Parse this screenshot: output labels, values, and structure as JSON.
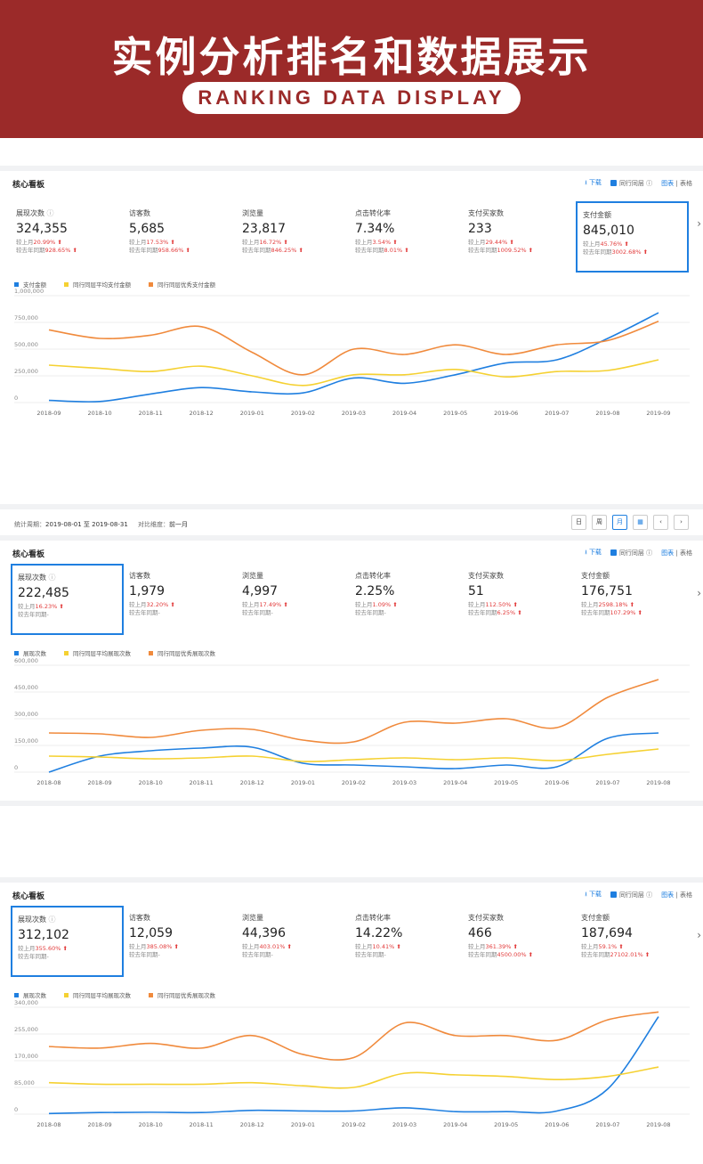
{
  "banner": {
    "title": "实例分析排名和数据展示",
    "subtitle": "RANKING DATA DISPLAY",
    "color": "#9b2a29"
  },
  "colors": {
    "blue": "#1f7fe0",
    "yellow": "#f5d132",
    "orange": "#f08a3c",
    "red": "#e23b3b"
  },
  "panels": [
    {
      "title": "核心看板",
      "download": "下载",
      "peer_label": "同行同层",
      "view_chart": "图表",
      "view_sep": "|",
      "view_table": "表格",
      "metrics": [
        {
          "name": "展现次数",
          "value": "324,355",
          "line1_label": "较上月",
          "line1_value": "20.99%",
          "line2_label": "较去年同期",
          "line2_value": "928.65%"
        },
        {
          "name": "访客数",
          "value": "5,685",
          "line1_label": "较上月",
          "line1_value": "17.53%",
          "line2_label": "较去年同期",
          "line2_value": "958.66%"
        },
        {
          "name": "浏览量",
          "value": "23,817",
          "line1_label": "较上月",
          "line1_value": "16.72%",
          "line2_label": "较去年同期",
          "line2_value": "846.25%"
        },
        {
          "name": "点击转化率",
          "value": "7.34%",
          "line1_label": "较上月",
          "line1_value": "3.54%",
          "line2_label": "较去年同期",
          "line2_value": "8.01%"
        },
        {
          "name": "支付买家数",
          "value": "233",
          "line1_label": "较上月",
          "line1_value": "29.44%",
          "line2_label": "较去年同期",
          "line2_value": "1009.52%"
        },
        {
          "name": "支付金额",
          "value": "845,010",
          "line1_label": "较上月",
          "line1_value": "45.76%",
          "line2_label": "较去年同期",
          "line2_value": "3002.68%"
        }
      ],
      "selected": 5,
      "legend": [
        "支付金额",
        "同行同层平均支付金额",
        "同行同层优秀支付金额"
      ]
    },
    {
      "title": "核心看板",
      "download": "下载",
      "peer_label": "同行同层",
      "view_chart": "图表",
      "view_sep": "|",
      "view_table": "表格",
      "metrics": [
        {
          "name": "展现次数",
          "value": "222,485",
          "line1_label": "较上月",
          "line1_value": "16.23%",
          "line2_label": "较去年同期",
          "line2_value": "-"
        },
        {
          "name": "访客数",
          "value": "1,979",
          "line1_label": "较上月",
          "line1_value": "32.20%",
          "line2_label": "较去年同期",
          "line2_value": "-"
        },
        {
          "name": "浏览量",
          "value": "4,997",
          "line1_label": "较上月",
          "line1_value": "17.49%",
          "line2_label": "较去年同期",
          "line2_value": "-"
        },
        {
          "name": "点击转化率",
          "value": "2.25%",
          "line1_label": "较上月",
          "line1_value": "1.09%",
          "line2_label": "较去年同期",
          "line2_value": "-"
        },
        {
          "name": "支付买家数",
          "value": "51",
          "line1_label": "较上月",
          "line1_value": "112.50%",
          "line2_label": "较去年同期",
          "line2_value": "6.25%"
        },
        {
          "name": "支付金额",
          "value": "176,751",
          "line1_label": "较上月",
          "line1_value": "2598.18%",
          "line2_label": "较去年同期",
          "line2_value": "107.29%"
        }
      ],
      "selected": 0,
      "legend": [
        "展现次数",
        "同行同层平均展现次数",
        "同行同层优秀展现次数"
      ]
    },
    {
      "title": "核心看板",
      "download": "下载",
      "peer_label": "同行同层",
      "view_chart": "图表",
      "view_sep": "|",
      "view_table": "表格",
      "metrics": [
        {
          "name": "展现次数",
          "value": "312,102",
          "line1_label": "较上月",
          "line1_value": "355.60%",
          "line2_label": "较去年同期",
          "line2_value": "-"
        },
        {
          "name": "访客数",
          "value": "12,059",
          "line1_label": "较上月",
          "line1_value": "385.08%",
          "line2_label": "较去年同期",
          "line2_value": "-"
        },
        {
          "name": "浏览量",
          "value": "44,396",
          "line1_label": "较上月",
          "line1_value": "403.01%",
          "line2_label": "较去年同期",
          "line2_value": "-"
        },
        {
          "name": "点击转化率",
          "value": "14.22%",
          "line1_label": "较上月",
          "line1_value": "10.41%",
          "line2_label": "较去年同期",
          "line2_value": "-"
        },
        {
          "name": "支付买家数",
          "value": "466",
          "line1_label": "较上月",
          "line1_value": "361.39%",
          "line2_label": "较去年同期",
          "line2_value": "4500.00%"
        },
        {
          "name": "支付金额",
          "value": "187,694",
          "line1_label": "较上月",
          "line1_value": "59.1%",
          "line2_label": "较去年同期",
          "line2_value": "27102.01%"
        }
      ],
      "selected": 0,
      "legend": [
        "展现次数",
        "同行同层平均展现次数",
        "同行同层优秀展现次数"
      ]
    }
  ],
  "filter": {
    "period_label": "统计周期：",
    "period_value": "2019-08-01 至 2019-08-31",
    "compare_label": "对比维度：",
    "compare_value": "前一月",
    "buttons": [
      "日",
      "周",
      "月"
    ],
    "active": "月"
  },
  "chart_data": [
    {
      "type": "line",
      "categories": [
        "2018-09",
        "2018-10",
        "2018-11",
        "2018-12",
        "2019-01",
        "2019-02",
        "2019-03",
        "2019-04",
        "2019-05",
        "2019-06",
        "2019-07",
        "2019-08",
        "2019-09"
      ],
      "ylim": [
        0,
        1000000
      ],
      "yticks": [
        "1,000,000",
        "750,000",
        "500,000",
        "250,000",
        "0"
      ],
      "series": [
        {
          "name": "支付金额",
          "color": "#1f7fe0",
          "values": [
            20000,
            10000,
            80000,
            140000,
            100000,
            90000,
            230000,
            180000,
            260000,
            370000,
            400000,
            600000,
            840000
          ]
        },
        {
          "name": "同行同层平均支付金额",
          "color": "#f5d132",
          "values": [
            350000,
            320000,
            290000,
            340000,
            250000,
            160000,
            260000,
            260000,
            310000,
            240000,
            290000,
            300000,
            400000
          ]
        },
        {
          "name": "同行同层优秀支付金额",
          "color": "#f08a3c",
          "values": [
            680000,
            600000,
            630000,
            710000,
            470000,
            260000,
            500000,
            450000,
            540000,
            450000,
            540000,
            580000,
            760000
          ]
        }
      ]
    },
    {
      "type": "line",
      "categories": [
        "2018-08",
        "2018-09",
        "2018-10",
        "2018-11",
        "2018-12",
        "2019-01",
        "2019-02",
        "2019-03",
        "2019-04",
        "2019-05",
        "2019-06",
        "2019-07",
        "2019-08"
      ],
      "ylim": [
        0,
        600000
      ],
      "yticks": [
        "600,000",
        "450,000",
        "300,000",
        "150,000",
        "0"
      ],
      "series": [
        {
          "name": "展现次数",
          "color": "#1f7fe0",
          "values": [
            0,
            90000,
            120000,
            135000,
            140000,
            50000,
            40000,
            30000,
            20000,
            40000,
            30000,
            190000,
            220000
          ]
        },
        {
          "name": "同行同层平均展现次数",
          "color": "#f5d132",
          "values": [
            90000,
            85000,
            75000,
            80000,
            90000,
            60000,
            70000,
            80000,
            70000,
            80000,
            65000,
            100000,
            130000
          ]
        },
        {
          "name": "同行同层优秀展现次数",
          "color": "#f08a3c",
          "values": [
            220000,
            215000,
            195000,
            235000,
            240000,
            180000,
            170000,
            280000,
            275000,
            300000,
            250000,
            420000,
            520000
          ]
        }
      ]
    },
    {
      "type": "line",
      "categories": [
        "2018-08",
        "2018-09",
        "2018-10",
        "2018-11",
        "2018-12",
        "2019-01",
        "2019-02",
        "2019-03",
        "2019-04",
        "2019-05",
        "2019-06",
        "2019-07",
        "2019-08"
      ],
      "ylim": [
        0,
        340000
      ],
      "yticks": [
        "340,000",
        "255,000",
        "170,000",
        "85,000",
        "0"
      ],
      "series": [
        {
          "name": "展现次数",
          "color": "#1f7fe0",
          "values": [
            2000,
            5000,
            6000,
            5000,
            12000,
            10000,
            10000,
            20000,
            8000,
            8000,
            10000,
            80000,
            310000
          ]
        },
        {
          "name": "同行同层平均展现次数",
          "color": "#f5d132",
          "values": [
            100000,
            95000,
            95000,
            95000,
            100000,
            90000,
            85000,
            130000,
            125000,
            120000,
            110000,
            120000,
            150000
          ]
        },
        {
          "name": "同行同层优秀展现次数",
          "color": "#f08a3c",
          "values": [
            215000,
            210000,
            225000,
            210000,
            250000,
            190000,
            180000,
            290000,
            250000,
            250000,
            235000,
            300000,
            325000
          ]
        }
      ]
    }
  ]
}
